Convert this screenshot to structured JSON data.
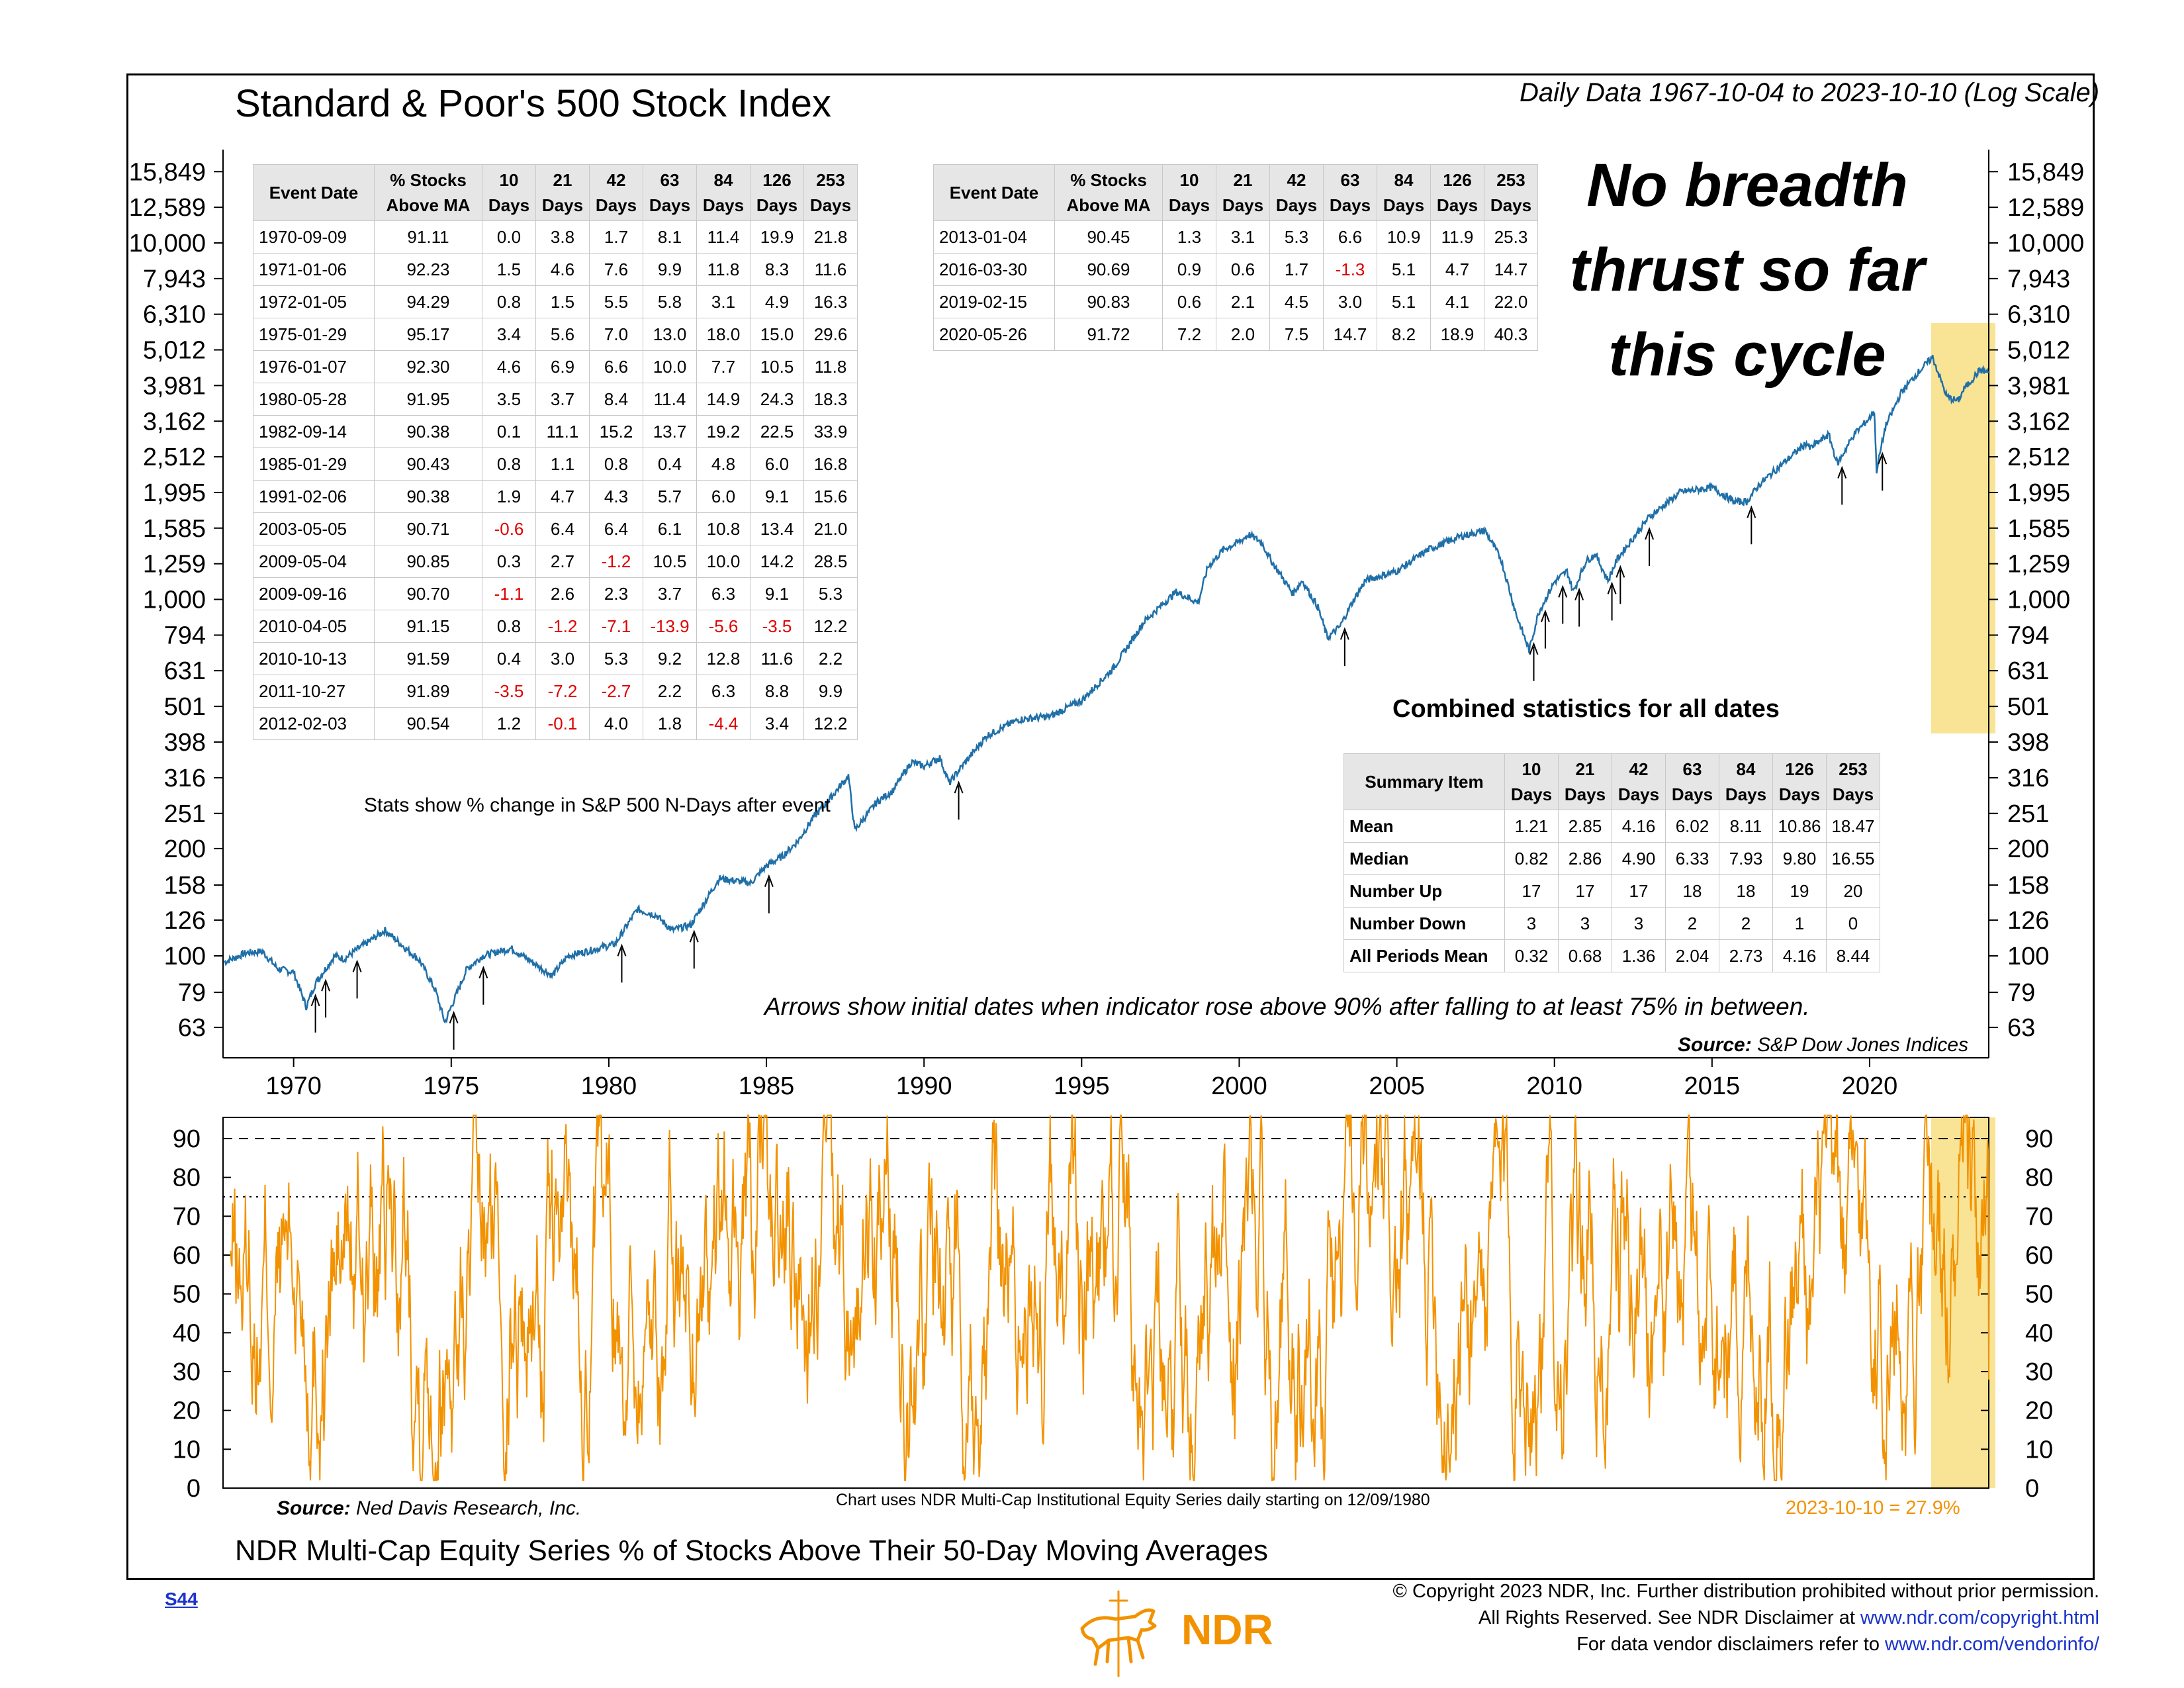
{
  "header": {
    "title": "Standard & Poor's 500 Stock Index",
    "subtitle": "Daily Data 1967-10-04 to 2023-10-10 (Log Scale)"
  },
  "top_axis": {
    "ticks": [
      "15,849",
      "12,589",
      "10,000",
      "7,943",
      "6,310",
      "5,012",
      "3,981",
      "3,162",
      "2,512",
      "1,995",
      "1,585",
      "1,259",
      "1,000",
      "794",
      "631",
      "501",
      "398",
      "316",
      "251",
      "200",
      "158",
      "126",
      "100",
      "79",
      "63"
    ],
    "values": [
      15849,
      12589,
      10000,
      7943,
      6310,
      5012,
      3981,
      3162,
      2512,
      1995,
      1585,
      1259,
      1000,
      794,
      631,
      501,
      398,
      316,
      251,
      200,
      158,
      126,
      100,
      79,
      63
    ]
  },
  "x_axis": {
    "ticks": [
      "1970",
      "1975",
      "1980",
      "1985",
      "1990",
      "1995",
      "2000",
      "2005",
      "2010",
      "2015",
      "2020"
    ]
  },
  "bottom_axis": {
    "ticks": [
      "90",
      "80",
      "70",
      "60",
      "50",
      "40",
      "30",
      "20",
      "10",
      "0"
    ]
  },
  "table_left": {
    "headers": [
      "Event Date",
      "% Stocks Above MA",
      "10 Days",
      "21 Days",
      "42 Days",
      "63 Days",
      "84 Days",
      "126 Days",
      "253 Days"
    ],
    "rows": [
      [
        "1970-09-09",
        "91.11",
        "0.0",
        "3.8",
        "1.7",
        "8.1",
        "11.4",
        "19.9",
        "21.8"
      ],
      [
        "1971-01-06",
        "92.23",
        "1.5",
        "4.6",
        "7.6",
        "9.9",
        "11.8",
        "8.3",
        "11.6"
      ],
      [
        "1972-01-05",
        "94.29",
        "0.8",
        "1.5",
        "5.5",
        "5.8",
        "3.1",
        "4.9",
        "16.3"
      ],
      [
        "1975-01-29",
        "95.17",
        "3.4",
        "5.6",
        "7.0",
        "13.0",
        "18.0",
        "15.0",
        "29.6"
      ],
      [
        "1976-01-07",
        "92.30",
        "4.6",
        "6.9",
        "6.6",
        "10.0",
        "7.7",
        "10.5",
        "11.8"
      ],
      [
        "1980-05-28",
        "91.95",
        "3.5",
        "3.7",
        "8.4",
        "11.4",
        "14.9",
        "24.3",
        "18.3"
      ],
      [
        "1982-09-14",
        "90.38",
        "0.1",
        "11.1",
        "15.2",
        "13.7",
        "19.2",
        "22.5",
        "33.9"
      ],
      [
        "1985-01-29",
        "90.43",
        "0.8",
        "1.1",
        "0.8",
        "0.4",
        "4.8",
        "6.0",
        "16.8"
      ],
      [
        "1991-02-06",
        "90.38",
        "1.9",
        "4.7",
        "4.3",
        "5.7",
        "6.0",
        "9.1",
        "15.6"
      ],
      [
        "2003-05-05",
        "90.71",
        "-0.6",
        "6.4",
        "6.4",
        "6.1",
        "10.8",
        "13.4",
        "21.0"
      ],
      [
        "2009-05-04",
        "90.85",
        "0.3",
        "2.7",
        "-1.2",
        "10.5",
        "10.0",
        "14.2",
        "28.5"
      ],
      [
        "2009-09-16",
        "90.70",
        "-1.1",
        "2.6",
        "2.3",
        "3.7",
        "6.3",
        "9.1",
        "5.3"
      ],
      [
        "2010-04-05",
        "91.15",
        "0.8",
        "-1.2",
        "-7.1",
        "-13.9",
        "-5.6",
        "-3.5",
        "12.2"
      ],
      [
        "2010-10-13",
        "91.59",
        "0.4",
        "3.0",
        "5.3",
        "9.2",
        "12.8",
        "11.6",
        "2.2"
      ],
      [
        "2011-10-27",
        "91.89",
        "-3.5",
        "-7.2",
        "-2.7",
        "2.2",
        "6.3",
        "8.8",
        "9.9"
      ],
      [
        "2012-02-03",
        "90.54",
        "1.2",
        "-0.1",
        "4.0",
        "1.8",
        "-4.4",
        "3.4",
        "12.2"
      ]
    ]
  },
  "table_right": {
    "headers": [
      "Event Date",
      "% Stocks Above MA",
      "10 Days",
      "21 Days",
      "42 Days",
      "63 Days",
      "84 Days",
      "126 Days",
      "253 Days"
    ],
    "rows": [
      [
        "2013-01-04",
        "90.45",
        "1.3",
        "3.1",
        "5.3",
        "6.6",
        "10.9",
        "11.9",
        "25.3"
      ],
      [
        "2016-03-30",
        "90.69",
        "0.9",
        "0.6",
        "1.7",
        "-1.3",
        "5.1",
        "4.7",
        "14.7"
      ],
      [
        "2019-02-15",
        "90.83",
        "0.6",
        "2.1",
        "4.5",
        "3.0",
        "5.1",
        "4.1",
        "22.0"
      ],
      [
        "2020-05-26",
        "91.72",
        "7.2",
        "2.0",
        "7.5",
        "14.7",
        "8.2",
        "18.9",
        "40.3"
      ]
    ]
  },
  "summary": {
    "title": "Combined statistics for all dates",
    "headers": [
      "Summary Item",
      "10 Days",
      "21 Days",
      "42 Days",
      "63 Days",
      "84 Days",
      "126 Days",
      "253 Days"
    ],
    "rows": [
      [
        "Mean",
        "1.21",
        "2.85",
        "4.16",
        "6.02",
        "8.11",
        "10.86",
        "18.47"
      ],
      [
        "Median",
        "0.82",
        "2.86",
        "4.90",
        "6.33",
        "7.93",
        "9.80",
        "16.55"
      ],
      [
        "Number Up",
        "17",
        "17",
        "17",
        "18",
        "18",
        "19",
        "20"
      ],
      [
        "Number Down",
        "3",
        "3",
        "3",
        "2",
        "2",
        "1",
        "0"
      ],
      [
        "All Periods Mean",
        "0.32",
        "0.68",
        "1.36",
        "2.04",
        "2.73",
        "4.16",
        "8.44"
      ]
    ]
  },
  "annotations": {
    "big": [
      "No breadth",
      "thrust so far",
      "this cycle"
    ],
    "stats_note": "Stats show % change in S&P 500 N-Days after event",
    "arrows_note": "Arrows show initial dates when indicator rose above 90% after falling to at least 75% in between.",
    "source_top_label": "Source:",
    "source_top": "S&P Dow Jones Indices",
    "source_bottom_label": "Source:",
    "source_bottom": "Ned Davis Research, Inc.",
    "series_note": "Chart uses NDR Multi-Cap Institutional Equity Series daily starting on 12/09/1980",
    "latest_value": "2023-10-10 = 27.9%",
    "bottom_title": "NDR Multi-Cap Equity Series % of Stocks Above Their 50-Day Moving Averages"
  },
  "footer": {
    "page_link": "S44",
    "line1": "© Copyright 2023 NDR, Inc. Further distribution prohibited without prior permission.",
    "line2_text": "All Rights Reserved. See NDR Disclaimer at ",
    "line2_link": "www.ndr.com/copyright.html",
    "line3_text": "For data vendor disclaimers refer to ",
    "line3_link": "www.ndr.com/vendorinfo/",
    "logo_text": "NDR"
  },
  "colors": {
    "sp500_line": "#1f6fa8",
    "breadth_line": "#f39200",
    "highlight": "#f8e08a",
    "negative": "#e00000"
  },
  "chart_data": [
    {
      "type": "line",
      "title": "Standard & Poor's 500 Stock Index",
      "y_scale": "log",
      "ylim": [
        63,
        15849
      ],
      "xlim": [
        1967.76,
        2023.78
      ],
      "series": [
        {
          "name": "",
          "x": [
            1967.8,
            1968.5,
            1969.0,
            1969.5,
            1970.0,
            1970.4,
            1970.7,
            1971.3,
            1971.6,
            1972.0,
            1972.9,
            1973.5,
            1974.0,
            1974.5,
            1974.8,
            1975.0,
            1975.5,
            1976.0,
            1976.9,
            1977.5,
            1978.2,
            1978.7,
            1979.5,
            1980.2,
            1980.9,
            1981.5,
            1982.0,
            1982.6,
            1983.5,
            1984.5,
            1985.0,
            1985.5,
            1986.0,
            1986.5,
            1987.0,
            1987.6,
            1987.8,
            1988.5,
            1989.0,
            1989.6,
            1990.0,
            1990.5,
            1990.8,
            1991.2,
            1992.0,
            1993.0,
            1994.0,
            1995.0,
            1996.0,
            1997.0,
            1998.0,
            1998.7,
            1999.0,
            1999.5,
            2000.0,
            2000.3,
            2000.7,
            2001.0,
            2001.7,
            2002.0,
            2002.5,
            2002.8,
            2003.2,
            2003.5,
            2004.0,
            2005.0,
            2006.0,
            2007.0,
            2007.8,
            2008.3,
            2008.8,
            2009.2,
            2009.5,
            2010.0,
            2010.4,
            2010.6,
            2011.0,
            2011.3,
            2011.7,
            2012.0,
            2013.0,
            2014.0,
            2015.0,
            2015.7,
            2016.1,
            2016.5,
            2017.0,
            2018.0,
            2018.1,
            2018.7,
            2018.98,
            2019.5,
            2020.0,
            2020.15,
            2020.22,
            2020.5,
            2021.0,
            2021.5,
            2022.0,
            2022.45,
            2022.8,
            2023.0,
            2023.5,
            2023.78
          ],
          "y": [
            96,
            102,
            103,
            92,
            90,
            72,
            84,
            100,
            98,
            104,
            118,
            106,
            97,
            80,
            65,
            72,
            92,
            100,
            105,
            97,
            88,
            100,
            104,
            108,
            135,
            130,
            118,
            122,
            165,
            160,
            179,
            190,
            210,
            245,
            275,
            320,
            225,
            270,
            290,
            350,
            340,
            360,
            305,
            340,
            415,
            460,
            470,
            520,
            640,
            870,
            1050,
            980,
            1230,
            1380,
            1450,
            1520,
            1450,
            1290,
            1040,
            1130,
            950,
            780,
            840,
            950,
            1130,
            1200,
            1380,
            1500,
            1560,
            1300,
            900,
            720,
            920,
            1120,
            1200,
            1050,
            1280,
            1340,
            1130,
            1300,
            1700,
            2000,
            2060,
            1880,
            1880,
            2100,
            2300,
            2750,
            2650,
            2900,
            2400,
            2900,
            3230,
            3380,
            2300,
            3050,
            3800,
            4300,
            4780,
            3700,
            3600,
            3900,
            4400,
            4330
          ]
        }
      ]
    },
    {
      "type": "line",
      "title": "NDR Multi-Cap Equity Series % of Stocks Above Their 50-Day Moving Averages",
      "ylim": [
        0,
        100
      ],
      "xlim": [
        1967.76,
        2023.78
      ],
      "reference_lines": [
        90,
        75
      ],
      "latest": {
        "date": "2023-10-10",
        "value": 27.9
      }
    }
  ]
}
